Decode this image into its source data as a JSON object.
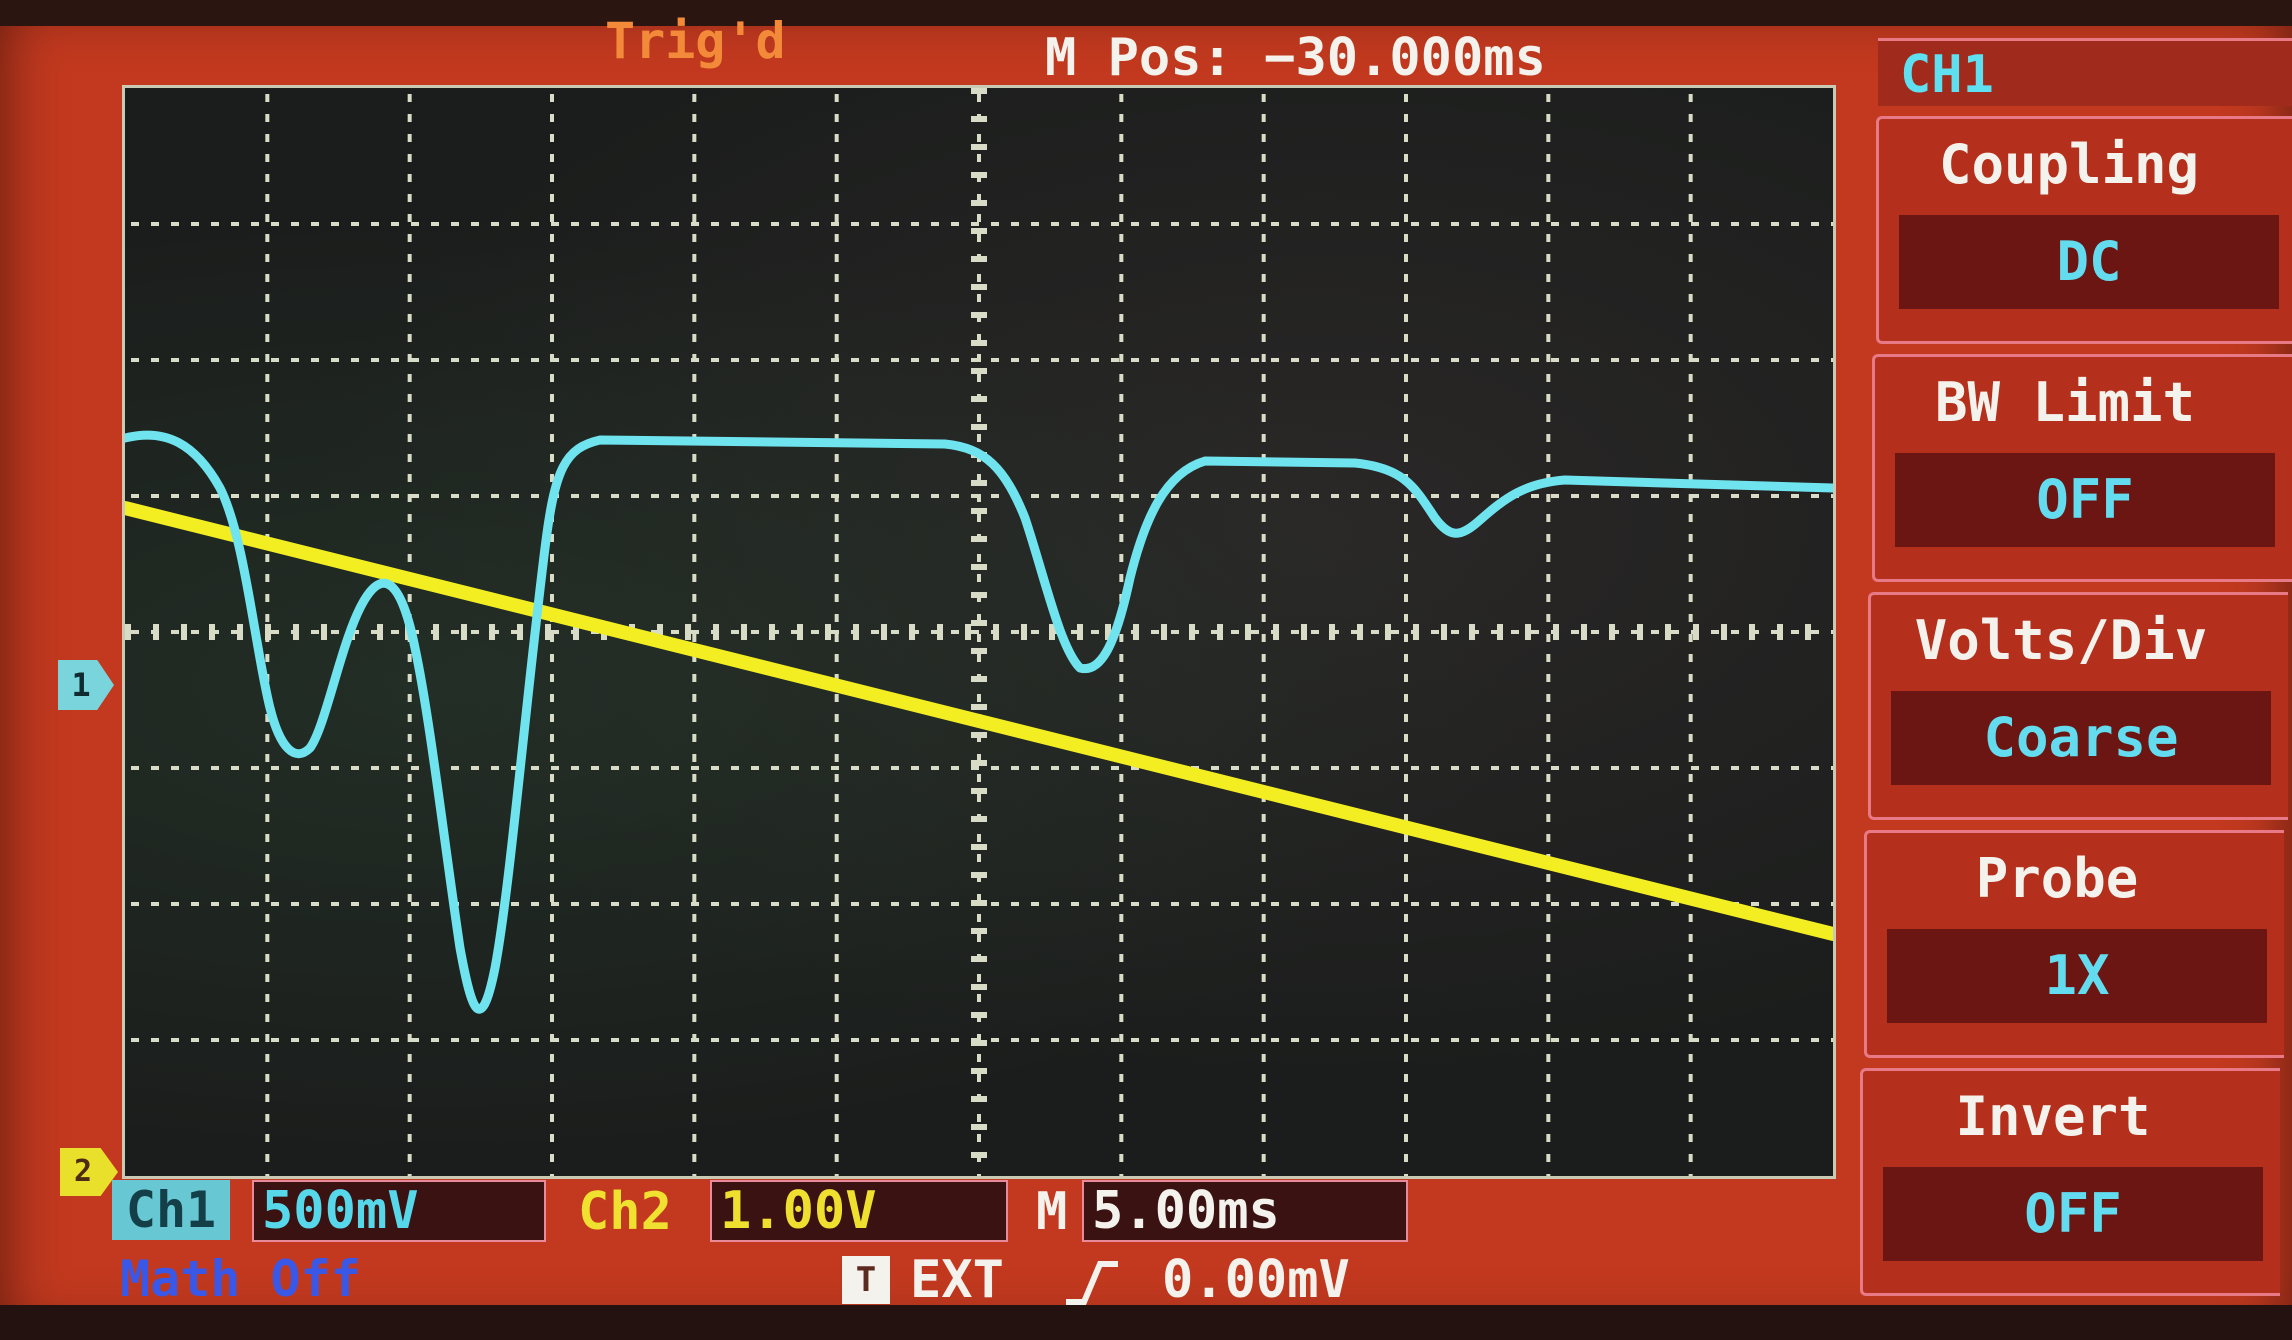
{
  "header": {
    "trigger_status": "Trig'd",
    "main_position": "M Pos: −30.000ms"
  },
  "markers": {
    "ch1": "1",
    "ch2": "2"
  },
  "status_bar": {
    "ch1_label": "Ch1",
    "ch1_scale": "500mV",
    "ch2_label": "Ch2",
    "ch2_scale": "1.00V",
    "timebase_label": "M",
    "timebase_scale": "5.00ms",
    "math": "Math Off",
    "trigger_icon": "T",
    "trigger_source": "EXT",
    "trigger_level": "0.00mV"
  },
  "menu": {
    "title": "CH1",
    "items": [
      {
        "label": "Coupling",
        "value": "DC"
      },
      {
        "label": "BW  Limit",
        "value": "OFF"
      },
      {
        "label": "Volts/Div",
        "value": "Coarse"
      },
      {
        "label": "Probe",
        "value": "1X"
      },
      {
        "label": "Invert",
        "value": "OFF"
      }
    ]
  },
  "colors": {
    "ch1_trace": "#6fe3ee",
    "ch2_trace": "#f2ee22",
    "bezel_red": "#c2391f",
    "grid_dots": "#d8dcc6"
  },
  "icons": {
    "rising_edge": "rising-edge-icon"
  }
}
